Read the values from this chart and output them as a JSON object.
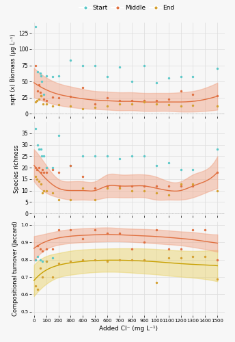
{
  "legend": {
    "labels": [
      "Start",
      "Middle",
      "End"
    ],
    "colors": [
      "#5BC8C8",
      "#E07040",
      "#D4A030"
    ]
  },
  "xlabel": "Added Cl⁻ (mg L⁻¹)",
  "panels": [
    {
      "ylabel": "sqrt (x) Biomass (μg L⁻¹)",
      "ylim": [
        -4,
        142
      ],
      "yticks": [
        0,
        25,
        50,
        75,
        100,
        125
      ],
      "hline_y": 0,
      "curve_color": "#E07040",
      "fill_color": "#F0A080",
      "fill_alpha": 0.45,
      "curve_x": [
        0,
        100,
        200,
        300,
        400,
        500,
        600,
        700,
        800,
        900,
        1000,
        1100,
        1200,
        1300,
        1400,
        1500
      ],
      "curve_y": [
        48,
        37,
        30,
        26,
        23,
        21,
        20,
        19,
        19,
        18,
        18,
        18,
        18,
        19,
        22,
        27
      ],
      "fill_lower": [
        25,
        18,
        13,
        10,
        8,
        7,
        6,
        5,
        5,
        4,
        4,
        4,
        3,
        3,
        4,
        6
      ],
      "fill_upper": [
        71,
        56,
        47,
        42,
        38,
        35,
        34,
        33,
        33,
        32,
        32,
        32,
        33,
        35,
        40,
        48
      ],
      "points_start": [
        [
          10,
          135
        ],
        [
          30,
          65
        ],
        [
          50,
          63
        ],
        [
          55,
          58
        ],
        [
          65,
          50
        ],
        [
          80,
          30
        ],
        [
          100,
          59
        ],
        [
          150,
          57
        ],
        [
          200,
          58
        ],
        [
          300,
          83
        ],
        [
          400,
          75
        ],
        [
          500,
          75
        ],
        [
          600,
          57
        ],
        [
          700,
          72
        ],
        [
          800,
          50
        ],
        [
          900,
          75
        ],
        [
          1000,
          48
        ],
        [
          1100,
          55
        ],
        [
          1200,
          57
        ],
        [
          1300,
          57
        ],
        [
          1500,
          70
        ]
      ],
      "points_middle": [
        [
          10,
          75
        ],
        [
          30,
          35
        ],
        [
          40,
          45
        ],
        [
          50,
          33
        ],
        [
          60,
          28
        ],
        [
          80,
          22
        ],
        [
          100,
          20
        ],
        [
          150,
          26
        ],
        [
          200,
          25
        ],
        [
          300,
          27
        ],
        [
          400,
          40
        ],
        [
          500,
          15
        ],
        [
          600,
          25
        ],
        [
          700,
          20
        ],
        [
          800,
          20
        ],
        [
          900,
          20
        ],
        [
          1000,
          20
        ],
        [
          1100,
          22
        ],
        [
          1200,
          35
        ],
        [
          1300,
          30
        ],
        [
          1500,
          28
        ]
      ],
      "points_end": [
        [
          10,
          18
        ],
        [
          25,
          20
        ],
        [
          40,
          22
        ],
        [
          55,
          28
        ],
        [
          75,
          15
        ],
        [
          100,
          15
        ],
        [
          150,
          12
        ],
        [
          200,
          14
        ],
        [
          300,
          12
        ],
        [
          400,
          8
        ],
        [
          500,
          10
        ],
        [
          600,
          12
        ],
        [
          700,
          15
        ],
        [
          800,
          15
        ],
        [
          900,
          18
        ],
        [
          1000,
          15
        ],
        [
          1100,
          14
        ],
        [
          1200,
          12
        ],
        [
          1300,
          13
        ],
        [
          1500,
          12
        ]
      ]
    },
    {
      "ylabel": "Species richness",
      "ylim": [
        -1,
        40
      ],
      "yticks": [
        0,
        5,
        10,
        15,
        20,
        25,
        30,
        35
      ],
      "hline_y": 0,
      "curve_color": "#E07040",
      "fill_color": "#F0A080",
      "fill_alpha": 0.45,
      "curve_x": [
        0,
        100,
        200,
        300,
        400,
        500,
        600,
        700,
        800,
        900,
        1000,
        1100,
        1200,
        1300,
        1400,
        1500
      ],
      "curve_y": [
        21,
        15,
        11,
        10,
        10,
        10,
        12,
        12,
        12,
        12,
        11,
        10,
        10,
        12,
        14,
        18
      ],
      "fill_lower": [
        14,
        9,
        7,
        6,
        6,
        6,
        7,
        7,
        7,
        7,
        6,
        6,
        6,
        7,
        9,
        11
      ],
      "fill_upper": [
        28,
        21,
        15,
        14,
        14,
        14,
        17,
        17,
        17,
        17,
        16,
        14,
        14,
        17,
        19,
        25
      ],
      "points_start": [
        [
          10,
          37
        ],
        [
          30,
          30
        ],
        [
          40,
          28
        ],
        [
          55,
          28
        ],
        [
          65,
          25
        ],
        [
          80,
          25
        ],
        [
          100,
          20
        ],
        [
          150,
          20
        ],
        [
          200,
          34
        ],
        [
          300,
          21
        ],
        [
          400,
          25
        ],
        [
          500,
          25
        ],
        [
          600,
          25
        ],
        [
          700,
          24
        ],
        [
          800,
          25
        ],
        [
          900,
          25
        ],
        [
          1000,
          21
        ],
        [
          1100,
          22
        ],
        [
          1200,
          19
        ],
        [
          1300,
          19
        ],
        [
          1500,
          28
        ]
      ],
      "points_middle": [
        [
          10,
          20
        ],
        [
          25,
          19
        ],
        [
          40,
          20
        ],
        [
          55,
          18
        ],
        [
          70,
          19
        ],
        [
          80,
          18
        ],
        [
          100,
          18
        ],
        [
          150,
          19
        ],
        [
          200,
          18
        ],
        [
          300,
          21
        ],
        [
          400,
          16
        ],
        [
          500,
          11
        ],
        [
          600,
          12
        ],
        [
          700,
          12
        ],
        [
          800,
          12
        ],
        [
          900,
          12
        ],
        [
          1000,
          12
        ],
        [
          1100,
          12
        ],
        [
          1200,
          12
        ],
        [
          1300,
          12
        ],
        [
          1500,
          18
        ]
      ],
      "points_end": [
        [
          10,
          16
        ],
        [
          25,
          15
        ],
        [
          40,
          14
        ],
        [
          55,
          13
        ],
        [
          70,
          9
        ],
        [
          80,
          10
        ],
        [
          100,
          10
        ],
        [
          150,
          9
        ],
        [
          200,
          6
        ],
        [
          300,
          6
        ],
        [
          400,
          11
        ],
        [
          500,
          6
        ],
        [
          600,
          11
        ],
        [
          700,
          11
        ],
        [
          800,
          10
        ],
        [
          900,
          10
        ],
        [
          1000,
          9
        ],
        [
          1100,
          8
        ],
        [
          1200,
          13
        ],
        [
          1300,
          13
        ],
        [
          1500,
          10
        ]
      ]
    },
    {
      "ylabel": "Compositional turnover (Jaccard)",
      "ylim": [
        0.48,
        1.02
      ],
      "yticks": [
        0.5,
        0.6,
        0.7,
        0.8,
        0.9,
        1.0
      ],
      "curve1_color": "#E07040",
      "curve1_fill": "#F0A080",
      "curve1_fill_alpha": 0.45,
      "curve2_color": "#C8A000",
      "curve2_fill": "#E8D060",
      "curve2_fill_alpha": 0.45,
      "curve_x": [
        0,
        100,
        200,
        300,
        400,
        500,
        600,
        700,
        800,
        900,
        1000,
        1100,
        1200,
        1300,
        1400,
        1500
      ],
      "curve1_y": [
        0.865,
        0.905,
        0.925,
        0.935,
        0.94,
        0.943,
        0.945,
        0.943,
        0.94,
        0.937,
        0.933,
        0.928,
        0.922,
        0.915,
        0.905,
        0.895
      ],
      "curve1_lower": [
        0.795,
        0.86,
        0.885,
        0.895,
        0.9,
        0.903,
        0.905,
        0.905,
        0.902,
        0.898,
        0.893,
        0.888,
        0.882,
        0.872,
        0.86,
        0.845
      ],
      "curve1_upper": [
        0.935,
        0.95,
        0.965,
        0.975,
        0.98,
        0.983,
        0.985,
        0.981,
        0.978,
        0.976,
        0.973,
        0.968,
        0.962,
        0.958,
        0.95,
        0.945
      ],
      "curve2_y": [
        0.68,
        0.74,
        0.768,
        0.782,
        0.79,
        0.795,
        0.797,
        0.797,
        0.795,
        0.792,
        0.788,
        0.782,
        0.777,
        0.773,
        0.77,
        0.765
      ],
      "curve2_lower": [
        0.59,
        0.66,
        0.698,
        0.713,
        0.722,
        0.728,
        0.73,
        0.729,
        0.725,
        0.72,
        0.715,
        0.708,
        0.702,
        0.696,
        0.688,
        0.675
      ],
      "curve2_upper": [
        0.77,
        0.82,
        0.838,
        0.851,
        0.858,
        0.862,
        0.864,
        0.865,
        0.865,
        0.864,
        0.861,
        0.856,
        0.852,
        0.85,
        0.852,
        0.855
      ],
      "points_red": [
        [
          10,
          0.8
        ],
        [
          30,
          0.88
        ],
        [
          50,
          0.86
        ],
        [
          70,
          0.85
        ],
        [
          100,
          0.86
        ],
        [
          150,
          0.86
        ],
        [
          200,
          0.97
        ],
        [
          300,
          0.97
        ],
        [
          400,
          0.92
        ],
        [
          500,
          0.97
        ],
        [
          600,
          0.95
        ],
        [
          700,
          0.95
        ],
        [
          800,
          0.86
        ],
        [
          900,
          0.9
        ],
        [
          1000,
          0.97
        ],
        [
          1100,
          0.86
        ],
        [
          1200,
          0.86
        ],
        [
          1300,
          0.97
        ],
        [
          1400,
          0.97
        ],
        [
          1500,
          0.8
        ]
      ],
      "points_blue": [
        [
          10,
          0.8
        ],
        [
          30,
          0.82
        ],
        [
          50,
          0.8
        ],
        [
          70,
          0.79
        ],
        [
          100,
          0.79
        ],
        [
          150,
          0.81
        ]
      ],
      "points_yellow": [
        [
          10,
          0.65
        ],
        [
          30,
          0.63
        ],
        [
          50,
          0.75
        ],
        [
          70,
          0.7
        ],
        [
          100,
          0.79
        ],
        [
          150,
          0.7
        ],
        [
          200,
          0.78
        ],
        [
          300,
          0.79
        ],
        [
          400,
          0.8
        ],
        [
          500,
          0.8
        ],
        [
          600,
          0.79
        ],
        [
          700,
          0.8
        ],
        [
          800,
          0.8
        ],
        [
          900,
          0.8
        ],
        [
          1000,
          0.67
        ],
        [
          1100,
          0.81
        ],
        [
          1200,
          0.81
        ],
        [
          1300,
          0.82
        ],
        [
          1400,
          0.82
        ],
        [
          1500,
          0.69
        ]
      ]
    }
  ],
  "bg_color": "#F7F7F7",
  "grid_color": "#DDDDDD",
  "xticks": [
    0,
    100,
    200,
    300,
    400,
    500,
    600,
    700,
    800,
    900,
    1000,
    1100,
    1200,
    1300,
    1400,
    1500
  ],
  "point_size": 6,
  "colors": {
    "start": "#5BC8C8",
    "middle": "#E07040",
    "end": "#D4A030"
  }
}
